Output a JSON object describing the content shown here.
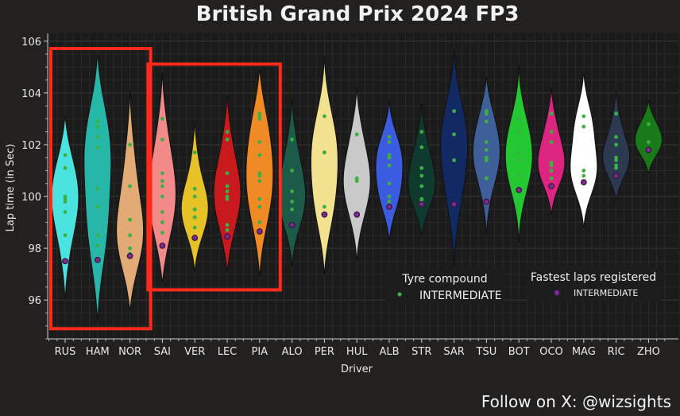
{
  "chart_data": {
    "type": "violin",
    "title": "British Grand Prix 2024 FP3",
    "xlabel": "Driver",
    "ylabel": "Lap time (in Sec)",
    "ylim": [
      94.5,
      106.3
    ],
    "yticks": [
      96,
      98,
      100,
      102,
      104,
      106
    ],
    "grid": true,
    "footer": "Follow on X: @wizsights",
    "legends": [
      {
        "title": "Tyre compound",
        "entry": "INTERMEDIATE",
        "marker_color": "#3cb043",
        "placement": "lower-center"
      },
      {
        "title": "Fastest laps registered",
        "entry": "INTERMEDIATE",
        "marker_color": "#7a2d8a",
        "placement": "lower-right"
      }
    ],
    "point_color": "#3cb043",
    "fastest_color": "#7a2d8a",
    "highlight_color": "#ff2a1a",
    "highlight_groups": [
      [
        "RUS",
        "HAM",
        "NOR"
      ],
      [
        "SAI",
        "VER",
        "LEC",
        "PIA"
      ]
    ],
    "drivers": [
      {
        "name": "RUS",
        "color": "#4be3e0",
        "min": 96.0,
        "max": 103.1,
        "fastest": 97.5,
        "laps": [
          101.6,
          101.1,
          101.1,
          100.0,
          99.9,
          99.8,
          99.4,
          98.5,
          97.5
        ]
      },
      {
        "name": "HAM",
        "color": "#27b7a8",
        "min": 95.2,
        "max": 105.5,
        "fastest": 97.55,
        "laps": [
          102.9,
          102.7,
          102.3,
          102.3,
          101.9,
          100.3,
          99.6,
          98.5,
          98.1,
          97.55
        ]
      },
      {
        "name": "NOR",
        "color": "#e2aa74",
        "min": 95.6,
        "max": 104.1,
        "fastest": 97.7,
        "laps": [
          102.0,
          100.4,
          99.1,
          98.5,
          98.0,
          97.8,
          97.7
        ]
      },
      {
        "name": "SAI",
        "color": "#f28a8a",
        "min": 96.7,
        "max": 104.8,
        "fastest": 98.1,
        "laps": [
          103.0,
          102.2,
          100.9,
          100.6,
          100.4,
          100.0,
          99.4,
          99.0,
          98.6,
          98.1
        ]
      },
      {
        "name": "VER",
        "color": "#e6c227",
        "min": 97.1,
        "max": 102.9,
        "fastest": 98.4,
        "laps": [
          101.7,
          100.3,
          100.0,
          99.5,
          99.5,
          99.2,
          98.8,
          98.4
        ]
      },
      {
        "name": "LEC",
        "color": "#c8191e",
        "min": 97.1,
        "max": 103.9,
        "fastest": 98.45,
        "laps": [
          102.5,
          102.2,
          100.9,
          100.4,
          100.4,
          100.2,
          100.0,
          99.9,
          98.9,
          98.7,
          98.45
        ]
      },
      {
        "name": "PIA",
        "color": "#f08a25",
        "min": 96.9,
        "max": 104.9,
        "fastest": 98.65,
        "laps": [
          103.2,
          103.1,
          103.0,
          102.1,
          101.6,
          100.9,
          100.8,
          100.6,
          99.9,
          99.6,
          99.0,
          98.65
        ]
      },
      {
        "name": "ALO",
        "color": "#1c5a4a",
        "min": 97.3,
        "max": 103.8,
        "fastest": 98.9,
        "laps": [
          102.2,
          101.0,
          100.2,
          99.8,
          99.5,
          98.9
        ]
      },
      {
        "name": "PER",
        "color": "#f2e18e",
        "min": 97.0,
        "max": 105.4,
        "fastest": 99.3,
        "laps": [
          103.1,
          101.7,
          101.7,
          99.6,
          99.3
        ]
      },
      {
        "name": "HUL",
        "color": "#c9c9c9",
        "min": 97.5,
        "max": 104.2,
        "fastest": 99.3,
        "laps": [
          102.4,
          100.7,
          100.6,
          99.3
        ]
      },
      {
        "name": "ALB",
        "color": "#3c5ce0",
        "min": 98.3,
        "max": 103.7,
        "fastest": 99.6,
        "laps": [
          102.3,
          102.1,
          101.6,
          101.5,
          101.2,
          100.5,
          100.0,
          99.8,
          99.6
        ]
      },
      {
        "name": "STR",
        "color": "#0f3a30",
        "min": 98.5,
        "max": 103.6,
        "fastest": 99.7,
        "laps": [
          102.5,
          101.9,
          101.1,
          101.1,
          100.8,
          100.4,
          99.9,
          99.9,
          99.8,
          99.7
        ]
      },
      {
        "name": "SAR",
        "color": "#122a63",
        "min": 97.3,
        "max": 105.7,
        "fastest": 99.7,
        "laps": [
          103.3,
          102.4,
          101.4,
          99.7
        ]
      },
      {
        "name": "TSU",
        "color": "#3f5f9a",
        "min": 98.5,
        "max": 104.6,
        "fastest": 99.8,
        "laps": [
          103.3,
          103.2,
          102.9,
          102.1,
          101.8,
          101.5,
          101.4,
          101.4,
          100.7,
          99.8
        ]
      },
      {
        "name": "BOT",
        "color": "#23c832",
        "min": 98.2,
        "max": 105.1,
        "fastest": 100.25,
        "laps": [
          103.0,
          102.5,
          101.7,
          101.4,
          100.8,
          100.25
        ]
      },
      {
        "name": "OCO",
        "color": "#dc2580",
        "min": 99.3,
        "max": 104.2,
        "fastest": 100.4,
        "laps": [
          103.2,
          102.5,
          102.1,
          101.3,
          101.3,
          101.2,
          101.0,
          100.7,
          100.4
        ]
      },
      {
        "name": "MAG",
        "color": "#ffffff",
        "min": 98.8,
        "max": 104.8,
        "fastest": 100.55,
        "laps": [
          103.1,
          102.7,
          101.0,
          100.8,
          100.55
        ]
      },
      {
        "name": "RIC",
        "color": "#2b3a50",
        "min": 99.8,
        "max": 104.1,
        "fastest": 100.8,
        "laps": [
          103.2,
          102.3,
          102.0,
          101.5,
          101.4,
          101.2,
          101.1,
          100.8
        ]
      },
      {
        "name": "ZHO",
        "color": "#1a7a1a",
        "min": 100.9,
        "max": 103.7,
        "fastest": 101.8,
        "laps": [
          102.8,
          102.1,
          101.8
        ]
      }
    ]
  }
}
